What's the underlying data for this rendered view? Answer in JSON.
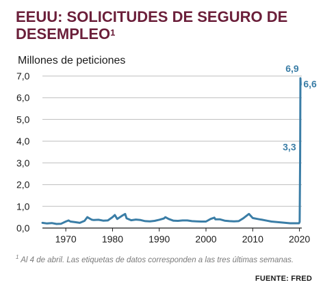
{
  "title": "EEUU: SOLICITUDES DE SEGURO DE DESEMPLEO",
  "title_sup": "1",
  "footnote_sup": "1",
  "footnote": "Al 4 de abril. Las etiquetas de datos corresponden a las tres últimas semanas.",
  "source": "FUENTE: FRED",
  "colors": {
    "title": "#6b1f3a",
    "line": "#3a7da6",
    "label": "#3a7da6"
  },
  "chart_data": {
    "type": "line",
    "title": "EEUU: SOLICITUDES DE SEGURO DE DESEMPLEO",
    "ylabel": "Millones de peticiones",
    "xlabel": "",
    "ylim": [
      0,
      7
    ],
    "xlim": [
      1965,
      2020.5
    ],
    "yticks": [
      "0,0",
      "1,0",
      "2,0",
      "3,0",
      "4,0",
      "5,0",
      "6,0",
      "7,0"
    ],
    "xticks": [
      "1970",
      "1980",
      "1990",
      "2000",
      "2010",
      "2020"
    ],
    "grid": "horizontal",
    "series": [
      {
        "x": [
          1965,
          1966,
          1967,
          1968,
          1969,
          1970,
          1970.6,
          1971,
          1972,
          1973,
          1974,
          1974.6,
          1975,
          1975.6,
          1976,
          1977,
          1978,
          1979,
          1980,
          1980.5,
          1981,
          1982,
          1982.7,
          1983,
          1984,
          1985,
          1986,
          1987,
          1988,
          1989,
          1990,
          1991,
          1991.3,
          1992,
          1993,
          1994,
          1995,
          1996,
          1997,
          1998,
          1999,
          2000,
          2001,
          2001.8,
          2002,
          2003,
          2004,
          2005,
          2006,
          2007,
          2008,
          2009,
          2009.2,
          2010,
          2011,
          2012,
          2013,
          2014,
          2015,
          2016,
          2017,
          2018,
          2019,
          2019.9,
          2020.05,
          2020.15,
          2020.2,
          2020.26
        ],
        "y": [
          0.24,
          0.21,
          0.23,
          0.19,
          0.2,
          0.3,
          0.35,
          0.3,
          0.27,
          0.24,
          0.33,
          0.5,
          0.45,
          0.38,
          0.37,
          0.38,
          0.34,
          0.35,
          0.5,
          0.6,
          0.42,
          0.56,
          0.65,
          0.45,
          0.36,
          0.39,
          0.37,
          0.32,
          0.31,
          0.33,
          0.38,
          0.44,
          0.5,
          0.42,
          0.34,
          0.33,
          0.35,
          0.35,
          0.32,
          0.31,
          0.3,
          0.3,
          0.42,
          0.48,
          0.4,
          0.4,
          0.34,
          0.32,
          0.31,
          0.32,
          0.45,
          0.62,
          0.65,
          0.46,
          0.42,
          0.38,
          0.34,
          0.3,
          0.28,
          0.26,
          0.24,
          0.22,
          0.22,
          0.22,
          0.28,
          3.3,
          6.9,
          6.6
        ]
      }
    ],
    "data_labels": [
      {
        "text": "6,9",
        "x": 2020.2,
        "y": 6.9
      },
      {
        "text": "6,6",
        "x": 2020.26,
        "y": 6.6
      },
      {
        "text": "3,3",
        "x": 2020.15,
        "y": 3.3
      }
    ]
  }
}
